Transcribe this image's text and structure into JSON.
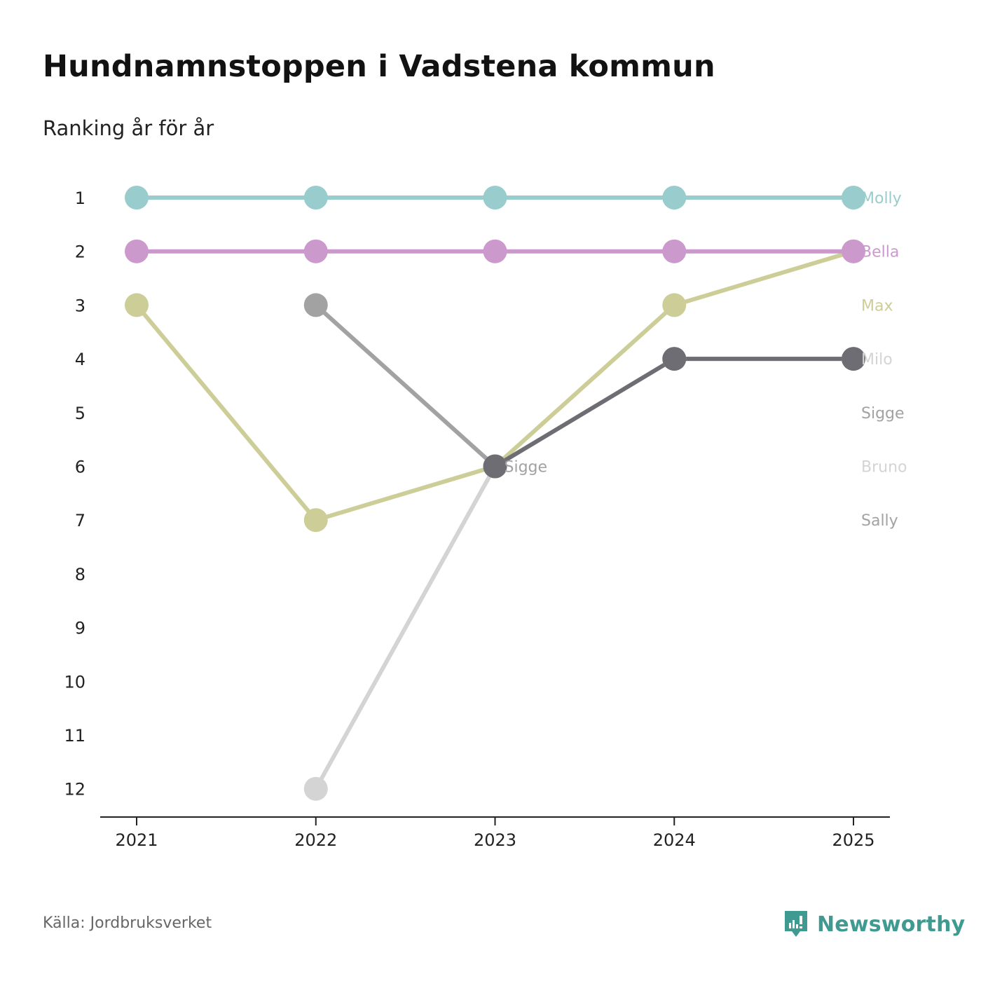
{
  "title": "Hundnamnstoppen i Vadstena kommun",
  "subtitle": "Ranking år för år",
  "source": "Källa: Jordbruksverket",
  "brand": {
    "name": "Newsworthy",
    "icon": "newsworthy-logo-icon",
    "color": "#3f9b92"
  },
  "chart_data": {
    "type": "line",
    "title": "Hundnamnstoppen i Vadstena kommun",
    "subtitle": "Ranking år för år",
    "xlabel": "",
    "ylabel": "",
    "x": [
      "2021",
      "2022",
      "2023",
      "2024",
      "2025"
    ],
    "ylim": [
      1,
      12
    ],
    "y_inverted": true,
    "y_ticks": [
      "1",
      "2",
      "3",
      "4",
      "5",
      "6",
      "7",
      "8",
      "9",
      "10",
      "11",
      "12"
    ],
    "series": [
      {
        "name": "Sally",
        "color": "#a2a2a2",
        "values": [
          null,
          3,
          6,
          null,
          null
        ]
      },
      {
        "name": "Bruno",
        "color": "#d4d4d4",
        "values": [
          null,
          12,
          6,
          4,
          4
        ]
      },
      {
        "name": "Max",
        "color": "#cdcd98",
        "values": [
          3,
          7,
          6,
          3,
          2
        ]
      },
      {
        "name": "Molly",
        "color": "#99cccc",
        "values": [
          1,
          1,
          1,
          1,
          1
        ]
      },
      {
        "name": "Bella",
        "color": "#cc99cc",
        "values": [
          2,
          2,
          2,
          2,
          2
        ]
      },
      {
        "name": "Milo",
        "color": "#d4d4d4",
        "values": [
          null,
          null,
          null,
          null,
          null
        ]
      },
      {
        "name": "Sigge",
        "color": "#6d6d73",
        "values": [
          null,
          null,
          6,
          4,
          4
        ]
      }
    ],
    "end_labels": [
      {
        "text": "Molly",
        "rank": 1,
        "color": "#99cccc"
      },
      {
        "text": "Bella",
        "rank": 2,
        "color": "#cc99cc"
      },
      {
        "text": "Max",
        "rank": 3,
        "color": "#cdcd98"
      },
      {
        "text": "Milo",
        "rank": 4,
        "color": "#d4d4d4"
      },
      {
        "text": "Sigge",
        "rank": 5,
        "color": "#a2a2a2"
      },
      {
        "text": "Bruno",
        "rank": 6,
        "color": "#d4d4d4"
      },
      {
        "text": "Sally",
        "rank": 7,
        "color": "#a2a2a2"
      }
    ],
    "annotations": [
      {
        "text": "Sigge",
        "x": "2023",
        "rank": 6,
        "color": "#a2a2a2"
      }
    ]
  }
}
